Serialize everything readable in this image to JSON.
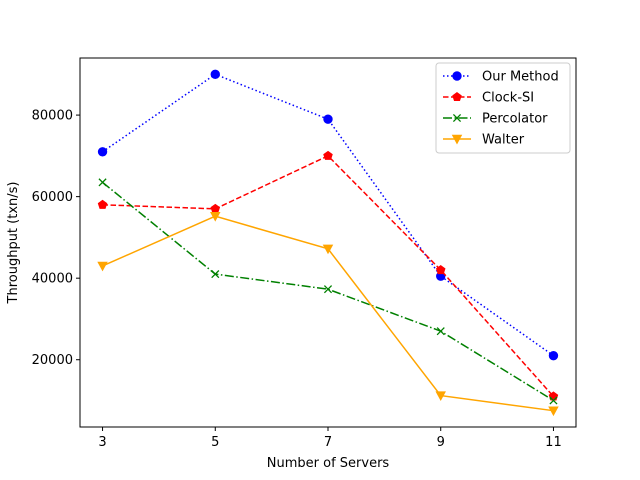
{
  "chart_data": {
    "type": "line",
    "xlabel": "Number of Servers",
    "ylabel": "Throughput (txn/s)",
    "x": [
      3,
      5,
      7,
      9,
      11
    ],
    "xlim": [
      2.6,
      11.4
    ],
    "ylim": [
      3500,
      94000
    ],
    "xticks": [
      "3",
      "5",
      "7",
      "9",
      "11"
    ],
    "yticks": [
      "20000",
      "40000",
      "60000",
      "80000"
    ],
    "legend_position": "top-right",
    "series": [
      {
        "name": "Our Method",
        "values": [
          71000,
          90000,
          79000,
          40500,
          21000
        ],
        "color": "#0000ff",
        "dash": "dotted",
        "marker": "circle"
      },
      {
        "name": "Clock-SI",
        "values": [
          58000,
          57000,
          70000,
          42000,
          11000
        ],
        "color": "#ff0000",
        "dash": "dashed",
        "marker": "pentagon"
      },
      {
        "name": "Percolator",
        "values": [
          63500,
          41000,
          37300,
          27000,
          10000
        ],
        "color": "#008000",
        "dash": "dashdot",
        "marker": "x"
      },
      {
        "name": "Walter",
        "values": [
          43000,
          55200,
          47200,
          11200,
          7500
        ],
        "color": "#ffa500",
        "dash": "solid",
        "marker": "triangle-down"
      }
    ]
  }
}
